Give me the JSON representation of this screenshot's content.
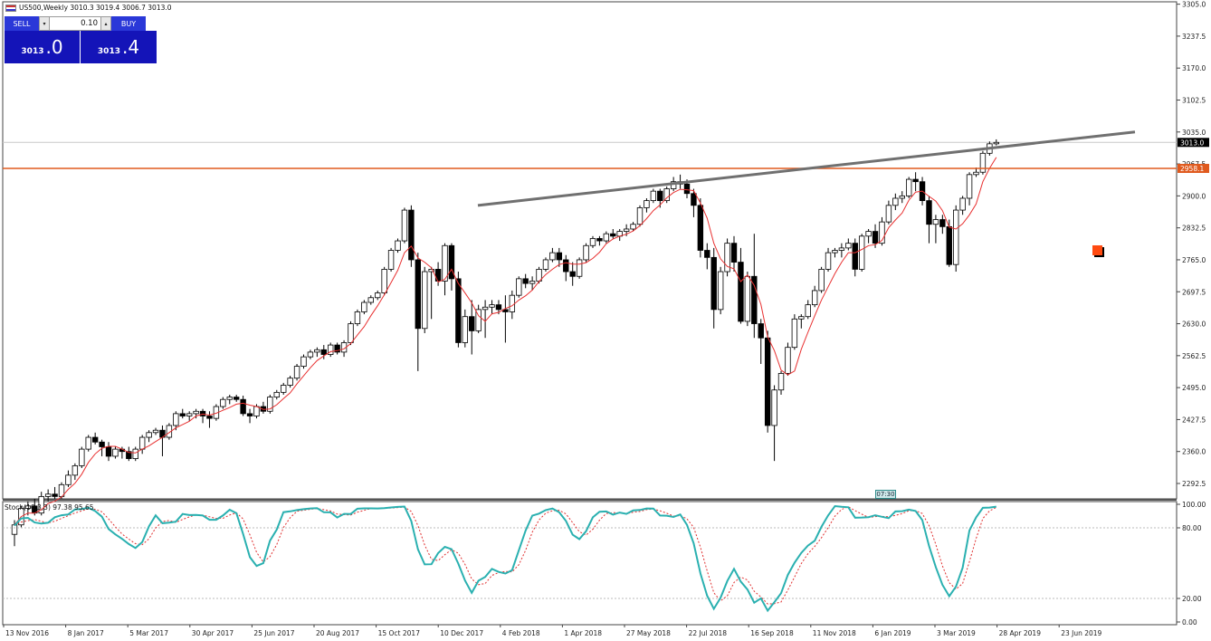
{
  "window": {
    "symbol_title": "US500,Weekly  3010.3 3019.4 3006.7 3013.0"
  },
  "trade_panel": {
    "sell_label": "SELL",
    "buy_label": "BUY",
    "volume": "0.10",
    "sell_price_big": "3013",
    "sell_price_pips": ".0",
    "buy_price_big": "3013",
    "buy_price_pips": ".4",
    "down_arrow": "▾",
    "up_arrow": "▴"
  },
  "price_axis": {
    "ticks": [
      "3305.0",
      "3237.5",
      "3170.0",
      "3102.5",
      "3035.0",
      "2967.5",
      "2900.0",
      "2832.5",
      "2765.0",
      "2697.5",
      "2630.0",
      "2562.5",
      "2495.0",
      "2427.5",
      "2360.0",
      "2292.5"
    ],
    "current_price_label": "3013.0",
    "level_label": "2958.1"
  },
  "stoch": {
    "label": "Stoch(10,3,3) 97.38 95.65",
    "ticks": [
      "100.00",
      "80.00",
      "20.00",
      "0.00"
    ]
  },
  "time_axis": {
    "labels": [
      "13 Nov 2016",
      "8 Jan 2017",
      "5 Mar 2017",
      "30 Apr 2017",
      "25 Jun 2017",
      "20 Aug 2017",
      "15 Oct 2017",
      "10 Dec 2017",
      "4 Feb 2018",
      "1 Apr 2018",
      "27 May 2018",
      "22 Jul 2018",
      "16 Sep 2018",
      "11 Nov 2018",
      "6 Jan 2019",
      "3 Mar 2019",
      "28 Apr 2019",
      "23 Jun 2019"
    ]
  },
  "time_badge": "07:30",
  "colors": {
    "level_line": "#e05a1e",
    "trend_line": "#707070",
    "ma_line": "#e83030",
    "stoch_main": "#2ab0b0",
    "stoch_signal": "#e03030",
    "panel_blue": "#1414b8"
  },
  "icons": {
    "symbol_flag": "us-flag-icon",
    "object_marker": "orange-square-marker"
  },
  "chart_data": {
    "type": "candlestick",
    "timeframe": "Weekly",
    "ohlc": [
      [
        2185,
        2215,
        2160,
        2205
      ],
      [
        2205,
        2245,
        2200,
        2240
      ],
      [
        2240,
        2255,
        2225,
        2245
      ],
      [
        2245,
        2260,
        2225,
        2230
      ],
      [
        2230,
        2275,
        2225,
        2265
      ],
      [
        2265,
        2280,
        2255,
        2270
      ],
      [
        2270,
        2285,
        2260,
        2265
      ],
      [
        2265,
        2295,
        2260,
        2290
      ],
      [
        2290,
        2320,
        2285,
        2310
      ],
      [
        2310,
        2335,
        2300,
        2330
      ],
      [
        2330,
        2370,
        2325,
        2365
      ],
      [
        2365,
        2395,
        2360,
        2390
      ],
      [
        2390,
        2400,
        2375,
        2380
      ],
      [
        2380,
        2385,
        2350,
        2370
      ],
      [
        2370,
        2380,
        2340,
        2350
      ],
      [
        2350,
        2370,
        2345,
        2365
      ],
      [
        2365,
        2370,
        2345,
        2360
      ],
      [
        2360,
        2370,
        2340,
        2345
      ],
      [
        2345,
        2370,
        2340,
        2365
      ],
      [
        2365,
        2395,
        2355,
        2390
      ],
      [
        2390,
        2405,
        2380,
        2400
      ],
      [
        2400,
        2410,
        2395,
        2405
      ],
      [
        2405,
        2415,
        2350,
        2390
      ],
      [
        2390,
        2420,
        2385,
        2415
      ],
      [
        2415,
        2445,
        2405,
        2440
      ],
      [
        2440,
        2450,
        2430,
        2435
      ],
      [
        2435,
        2445,
        2425,
        2440
      ],
      [
        2440,
        2450,
        2430,
        2445
      ],
      [
        2445,
        2450,
        2420,
        2435
      ],
      [
        2435,
        2445,
        2410,
        2430
      ],
      [
        2430,
        2460,
        2425,
        2455
      ],
      [
        2455,
        2475,
        2450,
        2470
      ],
      [
        2470,
        2480,
        2460,
        2475
      ],
      [
        2475,
        2480,
        2465,
        2470
      ],
      [
        2470,
        2478,
        2435,
        2440
      ],
      [
        2440,
        2450,
        2420,
        2435
      ],
      [
        2435,
        2460,
        2430,
        2455
      ],
      [
        2455,
        2465,
        2440,
        2445
      ],
      [
        2445,
        2480,
        2440,
        2475
      ],
      [
        2475,
        2490,
        2470,
        2485
      ],
      [
        2485,
        2505,
        2480,
        2500
      ],
      [
        2500,
        2520,
        2495,
        2515
      ],
      [
        2515,
        2545,
        2510,
        2540
      ],
      [
        2540,
        2565,
        2535,
        2560
      ],
      [
        2560,
        2575,
        2555,
        2570
      ],
      [
        2570,
        2580,
        2560,
        2575
      ],
      [
        2575,
        2585,
        2555,
        2565
      ],
      [
        2565,
        2590,
        2560,
        2585
      ],
      [
        2585,
        2590,
        2565,
        2570
      ],
      [
        2570,
        2595,
        2560,
        2590
      ],
      [
        2590,
        2635,
        2585,
        2630
      ],
      [
        2630,
        2660,
        2625,
        2655
      ],
      [
        2655,
        2680,
        2650,
        2675
      ],
      [
        2675,
        2690,
        2670,
        2685
      ],
      [
        2685,
        2700,
        2680,
        2695
      ],
      [
        2695,
        2750,
        2690,
        2745
      ],
      [
        2745,
        2790,
        2740,
        2785
      ],
      [
        2785,
        2810,
        2780,
        2805
      ],
      [
        2805,
        2875,
        2800,
        2870
      ],
      [
        2870,
        2880,
        2750,
        2765
      ],
      [
        2765,
        2780,
        2530,
        2620
      ],
      [
        2620,
        2750,
        2610,
        2740
      ],
      [
        2740,
        2750,
        2640,
        2745
      ],
      [
        2745,
        2760,
        2710,
        2720
      ],
      [
        2720,
        2800,
        2690,
        2795
      ],
      [
        2795,
        2800,
        2700,
        2725
      ],
      [
        2725,
        2740,
        2580,
        2590
      ],
      [
        2590,
        2660,
        2580,
        2645
      ],
      [
        2645,
        2680,
        2565,
        2615
      ],
      [
        2615,
        2670,
        2610,
        2660
      ],
      [
        2660,
        2680,
        2600,
        2665
      ],
      [
        2665,
        2680,
        2650,
        2670
      ],
      [
        2670,
        2680,
        2650,
        2660
      ],
      [
        2660,
        2690,
        2590,
        2655
      ],
      [
        2655,
        2700,
        2640,
        2690
      ],
      [
        2690,
        2730,
        2685,
        2725
      ],
      [
        2725,
        2735,
        2705,
        2715
      ],
      [
        2715,
        2730,
        2700,
        2720
      ],
      [
        2720,
        2750,
        2715,
        2745
      ],
      [
        2745,
        2770,
        2740,
        2765
      ],
      [
        2765,
        2790,
        2760,
        2780
      ],
      [
        2780,
        2790,
        2750,
        2765
      ],
      [
        2765,
        2775,
        2720,
        2740
      ],
      [
        2740,
        2760,
        2710,
        2730
      ],
      [
        2730,
        2770,
        2725,
        2765
      ],
      [
        2765,
        2800,
        2760,
        2795
      ],
      [
        2795,
        2815,
        2790,
        2810
      ],
      [
        2810,
        2815,
        2795,
        2805
      ],
      [
        2805,
        2825,
        2800,
        2820
      ],
      [
        2820,
        2830,
        2810,
        2815
      ],
      [
        2815,
        2830,
        2805,
        2825
      ],
      [
        2825,
        2840,
        2815,
        2830
      ],
      [
        2830,
        2845,
        2825,
        2840
      ],
      [
        2840,
        2880,
        2835,
        2875
      ],
      [
        2875,
        2895,
        2865,
        2890
      ],
      [
        2890,
        2915,
        2885,
        2910
      ],
      [
        2910,
        2915,
        2875,
        2890
      ],
      [
        2890,
        2920,
        2885,
        2915
      ],
      [
        2915,
        2940,
        2910,
        2930
      ],
      [
        2930,
        2945,
        2915,
        2925
      ],
      [
        2925,
        2935,
        2895,
        2905
      ],
      [
        2905,
        2915,
        2855,
        2880
      ],
      [
        2880,
        2895,
        2770,
        2785
      ],
      [
        2785,
        2800,
        2745,
        2770
      ],
      [
        2770,
        2790,
        2620,
        2660
      ],
      [
        2660,
        2750,
        2650,
        2740
      ],
      [
        2740,
        2810,
        2730,
        2800
      ],
      [
        2800,
        2815,
        2740,
        2760
      ],
      [
        2760,
        2790,
        2630,
        2635
      ],
      [
        2635,
        2740,
        2625,
        2730
      ],
      [
        2730,
        2820,
        2600,
        2630
      ],
      [
        2630,
        2640,
        2545,
        2600
      ],
      [
        2600,
        2615,
        2400,
        2415
      ],
      [
        2415,
        2500,
        2340,
        2490
      ],
      [
        2490,
        2530,
        2480,
        2525
      ],
      [
        2525,
        2590,
        2520,
        2580
      ],
      [
        2580,
        2650,
        2575,
        2640
      ],
      [
        2640,
        2650,
        2620,
        2645
      ],
      [
        2645,
        2680,
        2640,
        2670
      ],
      [
        2670,
        2710,
        2665,
        2700
      ],
      [
        2700,
        2750,
        2695,
        2745
      ],
      [
        2745,
        2790,
        2740,
        2780
      ],
      [
        2780,
        2790,
        2770,
        2785
      ],
      [
        2785,
        2800,
        2770,
        2790
      ],
      [
        2790,
        2810,
        2785,
        2800
      ],
      [
        2800,
        2810,
        2730,
        2745
      ],
      [
        2745,
        2820,
        2740,
        2815
      ],
      [
        2815,
        2830,
        2800,
        2825
      ],
      [
        2825,
        2840,
        2790,
        2800
      ],
      [
        2800,
        2855,
        2795,
        2845
      ],
      [
        2845,
        2890,
        2840,
        2880
      ],
      [
        2880,
        2905,
        2870,
        2895
      ],
      [
        2895,
        2910,
        2885,
        2900
      ],
      [
        2900,
        2940,
        2895,
        2935
      ],
      [
        2935,
        2950,
        2910,
        2930
      ],
      [
        2930,
        2940,
        2880,
        2890
      ],
      [
        2890,
        2900,
        2800,
        2840
      ],
      [
        2840,
        2860,
        2800,
        2850
      ],
      [
        2850,
        2860,
        2820,
        2835
      ],
      [
        2835,
        2850,
        2750,
        2755
      ],
      [
        2755,
        2880,
        2740,
        2870
      ],
      [
        2870,
        2900,
        2860,
        2895
      ],
      [
        2895,
        2950,
        2880,
        2945
      ],
      [
        2945,
        2960,
        2940,
        2950
      ],
      [
        2950,
        2995,
        2945,
        2990
      ],
      [
        2990,
        3015,
        2985,
        3010
      ],
      [
        3010,
        3019.4,
        3006.7,
        3013.0
      ]
    ],
    "trend_line": {
      "start": [
        "03 Dec 2017",
        2880
      ],
      "end": [
        "14 Jul 2019",
        3035
      ]
    },
    "horizontal_level": 2958.1,
    "y_range": [
      2260,
      3310
    ],
    "stochastic": {
      "k": 10,
      "d": 3,
      "slowing": 3,
      "main_last": 97.38,
      "signal_last": 95.65,
      "y_range": [
        0,
        100
      ]
    }
  }
}
